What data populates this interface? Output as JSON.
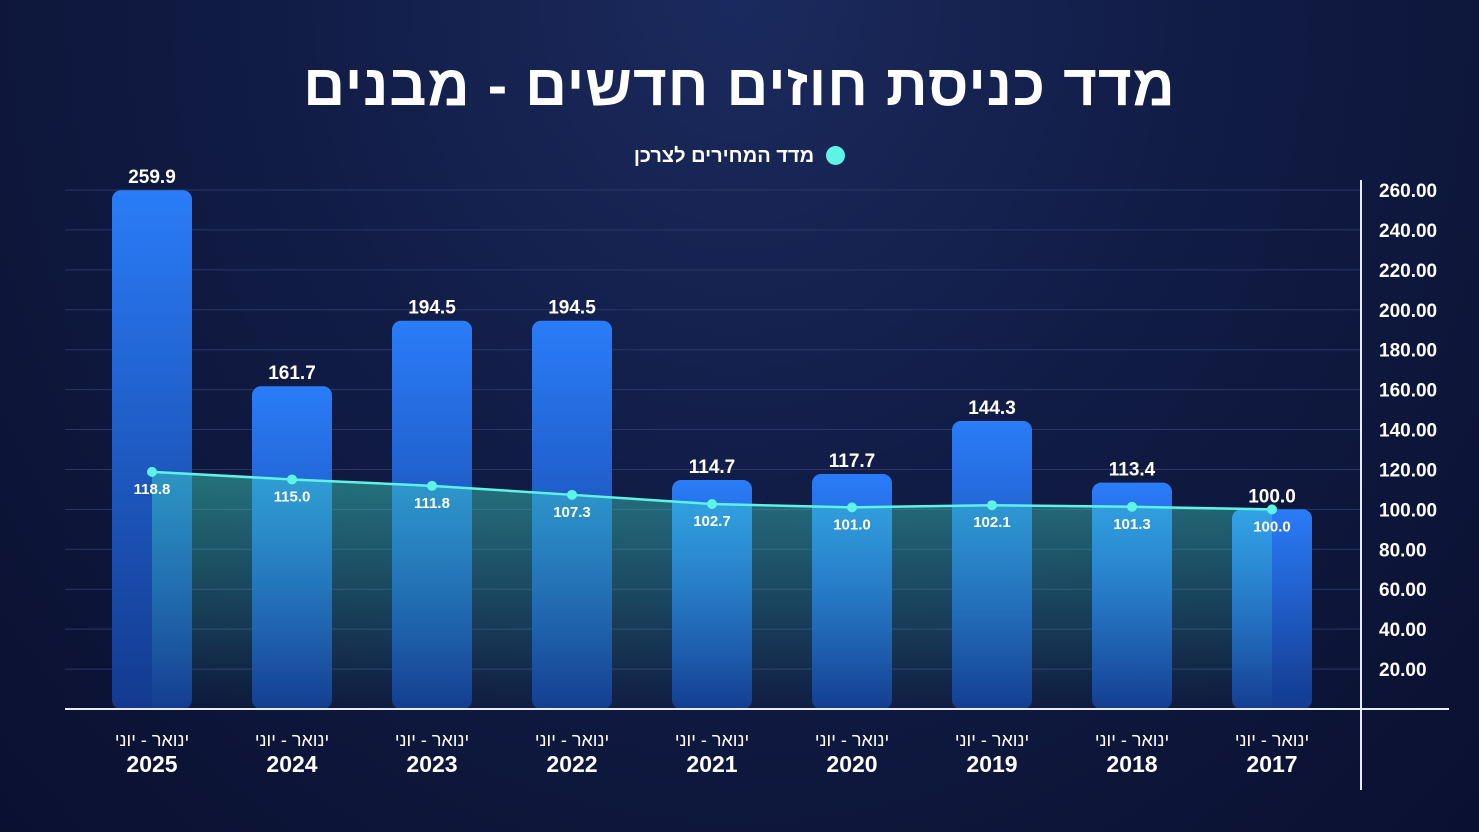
{
  "title": "מדד כניסת חוזים חדשים - מבנים",
  "legend": {
    "line_label": "מדד המחירים לצרכן"
  },
  "colors": {
    "bar_top": "#2a7cf8",
    "bar_bottom": "#133a8f",
    "line": "#5ff2e6",
    "background": "#111c45"
  },
  "chart_data": {
    "type": "bar",
    "title": "מדד כניסת חוזים חדשים - מבנים",
    "categories": [
      {
        "period": "ינואר - יוני",
        "year": "2025"
      },
      {
        "period": "ינואר - יוני",
        "year": "2024"
      },
      {
        "period": "ינואר - יוני",
        "year": "2023"
      },
      {
        "period": "ינואר - יוני",
        "year": "2022"
      },
      {
        "period": "ינואר - יוני",
        "year": "2021"
      },
      {
        "period": "ינואר - יוני",
        "year": "2020"
      },
      {
        "period": "ינואר - יוני",
        "year": "2019"
      },
      {
        "period": "ינואר - יוני",
        "year": "2018"
      },
      {
        "period": "ינואר - יוני",
        "year": "2017"
      }
    ],
    "series": [
      {
        "type": "bar",
        "values": [
          259.9,
          161.7,
          194.5,
          194.5,
          114.7,
          117.7,
          144.3,
          113.4,
          100.0
        ],
        "labels": [
          "259.9",
          "161.7",
          "194.5",
          "194.5",
          "114.7",
          "117.7",
          "144.3",
          "113.4",
          "100.0"
        ]
      },
      {
        "name": "מדד המחירים לצרכן",
        "type": "line",
        "values": [
          118.8,
          115.0,
          111.8,
          107.3,
          102.7,
          101.0,
          102.1,
          101.3,
          100.0
        ],
        "labels": [
          "118.8",
          "115.0",
          "111.8",
          "107.3",
          "102.7",
          "101.0",
          "102.1",
          "101.3",
          "100.0"
        ]
      }
    ],
    "yaxis": {
      "position": "right",
      "ylim": [
        0,
        260
      ],
      "ticks": [
        20,
        40,
        60,
        80,
        100,
        120,
        140,
        160,
        180,
        200,
        220,
        240,
        260
      ],
      "tick_labels": [
        "20.00",
        "40.00",
        "60.00",
        "80.00",
        "100.00",
        "120.00",
        "140.00",
        "160.00",
        "180.00",
        "200.00",
        "220.00",
        "240.00",
        "260.00"
      ]
    },
    "grid": true,
    "legend_position": "top-center"
  }
}
